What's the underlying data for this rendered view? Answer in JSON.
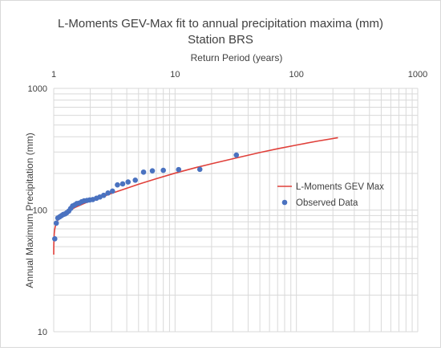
{
  "chart_data": {
    "type": "scatter",
    "title": "L-Moments GEV-Max fit to annual precipitation maxima (mm)",
    "subtitle": "Station BRS",
    "xlabel": "Return Period (years)",
    "ylabel": "Annual Maximum Precipitation (mm)",
    "x_scale": "log",
    "y_scale": "log",
    "xlim": [
      1,
      1000
    ],
    "ylim": [
      10,
      1000
    ],
    "x_ticks": [
      "1",
      "10",
      "100",
      "1000"
    ],
    "y_ticks": [
      "10",
      "100",
      "1000"
    ],
    "grid": "log minor and major",
    "legend_position": "right",
    "colors": {
      "fit": "#e0403a",
      "observed": "#4a72c0",
      "grid": "#d9d9d9"
    },
    "series": [
      {
        "name": "L-Moments GEV Max",
        "type": "line",
        "x": [
          1.0,
          1.001,
          1.005,
          1.01,
          1.02,
          1.04,
          1.07,
          1.1,
          1.15,
          1.2,
          1.3,
          1.4,
          1.5,
          1.7,
          2.0,
          2.5,
          3.0,
          4.0,
          5.0,
          7.0,
          10,
          15,
          20,
          30,
          50,
          70,
          100,
          150,
          220
        ],
        "y": [
          43,
          50,
          58,
          64,
          70,
          76,
          81,
          85,
          89,
          92,
          97,
          101,
          105,
          111,
          119,
          128,
          137,
          151,
          163,
          181,
          201,
          224,
          240,
          264,
          297,
          319,
          342,
          369,
          393
        ]
      },
      {
        "name": "Observed Data",
        "type": "scatter",
        "x": [
          1.02,
          1.05,
          1.08,
          1.12,
          1.16,
          1.2,
          1.24,
          1.28,
          1.33,
          1.38,
          1.43,
          1.49,
          1.55,
          1.62,
          1.7,
          1.78,
          1.88,
          1.98,
          2.1,
          2.25,
          2.4,
          2.58,
          2.8,
          3.05,
          3.35,
          3.7,
          4.1,
          4.7,
          5.5,
          6.5,
          8.0,
          10.7,
          16.0,
          32.0
        ],
        "y": [
          58,
          78,
          86,
          88,
          90,
          92,
          93,
          95,
          98,
          103,
          108,
          110,
          113,
          114,
          117,
          119,
          120,
          121,
          122,
          125,
          128,
          132,
          138,
          143,
          161,
          164,
          170,
          176,
          205,
          210,
          212,
          215,
          216,
          283
        ]
      }
    ]
  }
}
